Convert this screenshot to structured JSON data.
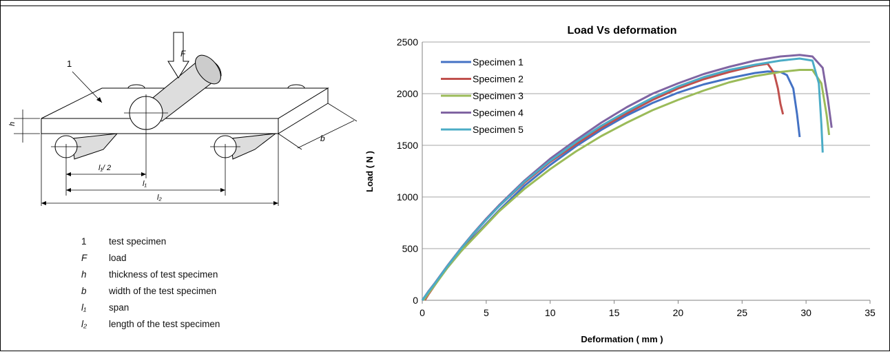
{
  "diagram": {
    "part_label": "1",
    "force_label": "F",
    "h_label": "h",
    "b_label": "b",
    "half_span_label": "l₁/ 2",
    "span_label": "l₁",
    "length_label": "l₂",
    "legend": [
      {
        "symbol": "1",
        "text": "test specimen"
      },
      {
        "symbol": "F",
        "text": "load"
      },
      {
        "symbol": "h",
        "text": "thickness of test specimen"
      },
      {
        "symbol": "b",
        "text": "width of the test specimen"
      },
      {
        "symbol": "l₁",
        "text": "span"
      },
      {
        "symbol": "l₂",
        "text": "length of the test specimen"
      }
    ]
  },
  "chart_data": {
    "type": "line",
    "title": "Load Vs deformation",
    "xlabel": "Deformation ( mm )",
    "ylabel": "Load ( N )",
    "xlim": [
      0,
      35
    ],
    "ylim": [
      0,
      2500
    ],
    "xticks": [
      0,
      5,
      10,
      15,
      20,
      25,
      30,
      35
    ],
    "yticks": [
      0,
      500,
      1000,
      1500,
      2000,
      2500
    ],
    "grid": "horizontal",
    "legend_position": "top-left",
    "series": [
      {
        "name": "Specimen 1",
        "color": "#4472C4",
        "x": [
          0,
          0.5,
          1,
          2,
          3,
          4,
          5,
          6,
          8,
          10,
          12,
          14,
          16,
          18,
          20,
          22,
          24,
          26,
          27,
          28,
          28.5,
          29,
          29.3,
          29.5
        ],
        "y": [
          0,
          80,
          160,
          320,
          470,
          610,
          740,
          870,
          1110,
          1310,
          1490,
          1650,
          1790,
          1910,
          2010,
          2090,
          2150,
          2200,
          2215,
          2210,
          2180,
          2050,
          1800,
          1580
        ]
      },
      {
        "name": "Specimen 2",
        "color": "#C0504D",
        "x": [
          0.2,
          0.5,
          1,
          2,
          3,
          4,
          5,
          6,
          8,
          10,
          12,
          14,
          16,
          18,
          20,
          22,
          24,
          26,
          27,
          27.5,
          27.8,
          28,
          28.2
        ],
        "y": [
          0,
          60,
          150,
          330,
          490,
          640,
          780,
          910,
          1140,
          1340,
          1510,
          1670,
          1810,
          1940,
          2050,
          2140,
          2210,
          2270,
          2290,
          2200,
          2050,
          1900,
          1800
        ]
      },
      {
        "name": "Specimen 3",
        "color": "#9BBB59",
        "x": [
          0.1,
          0.5,
          1,
          2,
          3,
          4,
          5,
          6,
          8,
          10,
          12,
          14,
          16,
          18,
          20,
          22,
          24,
          26,
          28,
          29.5,
          30.5,
          31.2,
          31.6,
          31.8
        ],
        "y": [
          0,
          70,
          150,
          320,
          470,
          600,
          730,
          860,
          1080,
          1270,
          1440,
          1590,
          1720,
          1840,
          1940,
          2030,
          2110,
          2170,
          2210,
          2230,
          2230,
          2100,
          1800,
          1600
        ]
      },
      {
        "name": "Specimen 4",
        "color": "#8064A2",
        "x": [
          0,
          0.5,
          1,
          2,
          3,
          4,
          5,
          6,
          8,
          10,
          12,
          14,
          16,
          18,
          20,
          22,
          24,
          26,
          28,
          29.5,
          30.5,
          31.3,
          31.7,
          32
        ],
        "y": [
          0,
          90,
          170,
          340,
          500,
          650,
          790,
          920,
          1160,
          1370,
          1550,
          1720,
          1870,
          2000,
          2100,
          2190,
          2260,
          2320,
          2360,
          2375,
          2360,
          2250,
          1950,
          1670
        ]
      },
      {
        "name": "Specimen 5",
        "color": "#4BACC6",
        "x": [
          0,
          0.5,
          1,
          2,
          3,
          4,
          5,
          6,
          8,
          10,
          12,
          14,
          16,
          18,
          20,
          22,
          24,
          26,
          28,
          29.5,
          30.5,
          31,
          31.2,
          31.3
        ],
        "y": [
          0,
          85,
          165,
          335,
          495,
          645,
          780,
          910,
          1150,
          1350,
          1530,
          1690,
          1830,
          1960,
          2070,
          2160,
          2230,
          2280,
          2320,
          2340,
          2320,
          2100,
          1700,
          1430
        ]
      }
    ]
  }
}
